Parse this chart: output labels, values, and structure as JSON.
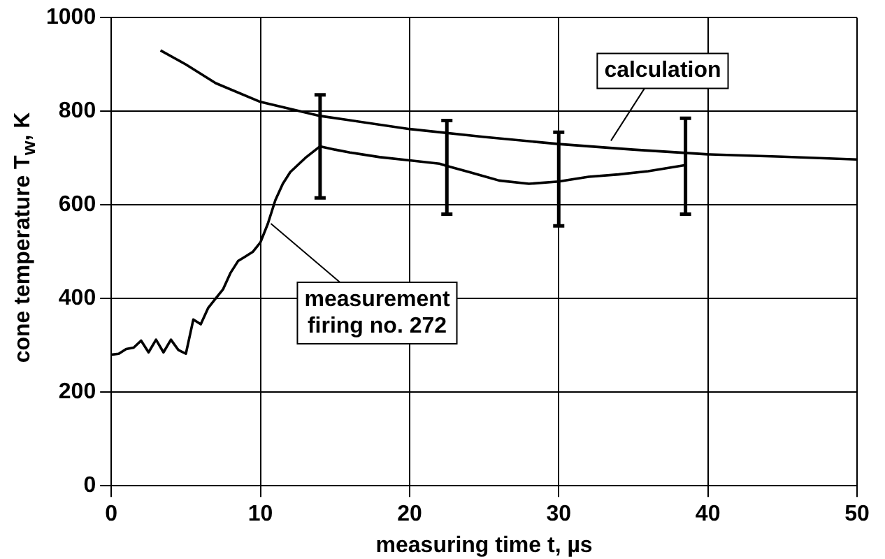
{
  "chart_data": {
    "type": "line",
    "xlabel": "measuring time t, µs",
    "ylabel": "cone temperature T$_{w}$, K",
    "xlim": [
      0,
      50
    ],
    "xticks": [
      0,
      10,
      20,
      30,
      40,
      50
    ],
    "ylim": [
      0,
      1000
    ],
    "yticks": [
      0,
      200,
      400,
      600,
      800,
      1000
    ],
    "grid": true,
    "legend": false,
    "marker": "none",
    "line_style": "solid",
    "series": [
      {
        "color": "#000000",
        "x": [
          0,
          0.5,
          1,
          1.5,
          2,
          2.5,
          3,
          3.5,
          4,
          4.5,
          5,
          5.5,
          6,
          6.5,
          7,
          7.5,
          8,
          8.5,
          9,
          9.5,
          10,
          10.5,
          11,
          11.5,
          12,
          13,
          14,
          15,
          16,
          18,
          20,
          22,
          22.5,
          24,
          26,
          28,
          30,
          32,
          34,
          36,
          38.5
        ],
        "values": [
          280,
          282,
          292,
          295,
          310,
          285,
          312,
          285,
          312,
          290,
          282,
          355,
          345,
          380,
          400,
          420,
          455,
          480,
          490,
          500,
          520,
          560,
          610,
          645,
          670,
          700,
          725,
          718,
          712,
          702,
          695,
          688,
          683,
          670,
          652,
          645,
          650,
          660,
          665,
          672,
          685
        ],
        "errors": [
          null,
          null,
          null,
          null,
          null,
          null,
          null,
          null,
          null,
          null,
          null,
          null,
          null,
          null,
          null,
          null,
          null,
          null,
          null,
          null,
          null,
          null,
          null,
          null,
          null,
          null,
          [
            615,
            835
          ],
          null,
          null,
          null,
          null,
          null,
          [
            580,
            780
          ],
          null,
          null,
          null,
          [
            555,
            755
          ],
          null,
          null,
          null,
          [
            580,
            785
          ]
        ]
      },
      {
        "color": "#000000",
        "x": [
          3.3,
          5,
          7,
          10,
          14,
          20,
          25,
          30,
          35,
          40,
          45,
          50
        ],
        "values": [
          930,
          900,
          860,
          820,
          790,
          762,
          745,
          730,
          718,
          708,
          703,
          697
        ]
      }
    ],
    "annotations": [
      {
        "text": "calculation",
        "x": 33.5,
        "y": 737
      },
      {
        "text": "measurement\nfiring no. 272",
        "x": 10.7,
        "y": 560
      }
    ]
  }
}
